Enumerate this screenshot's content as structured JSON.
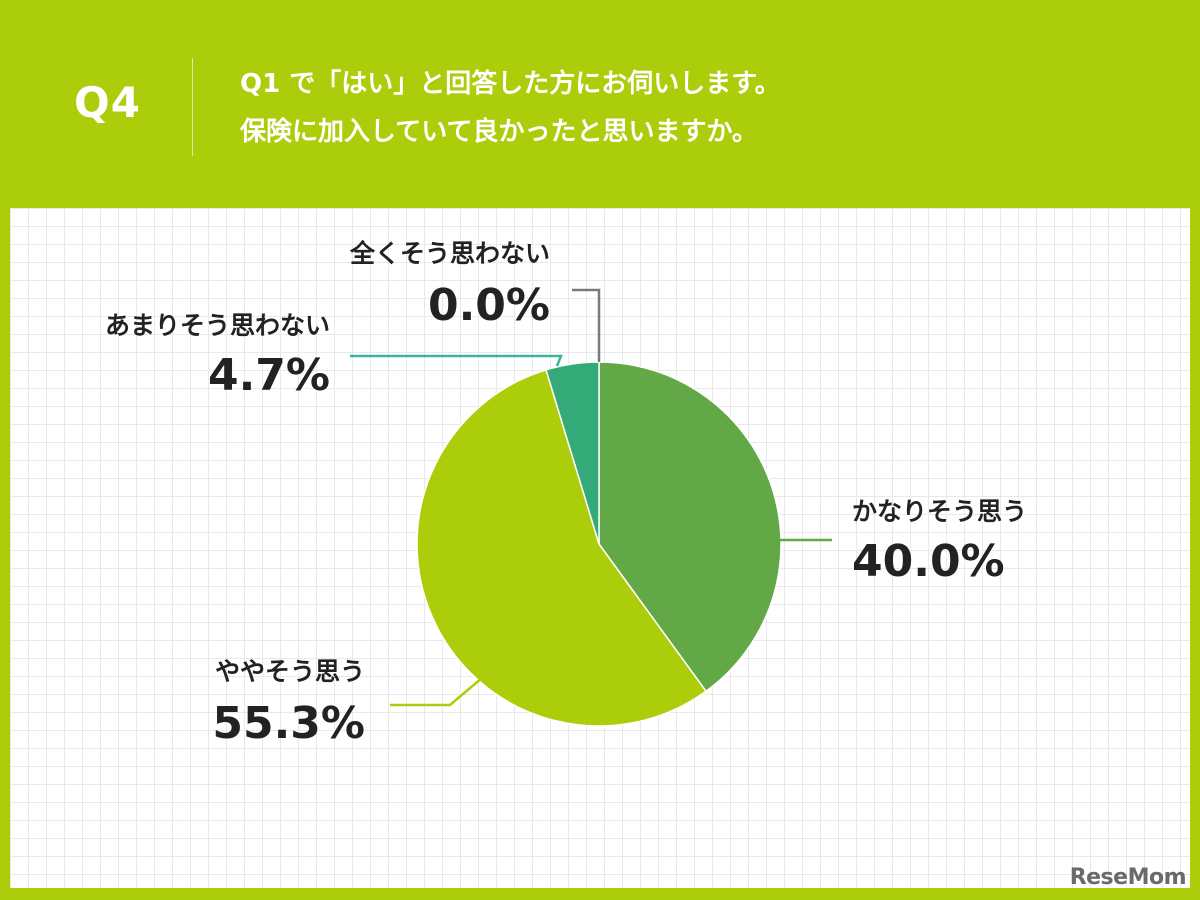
{
  "header": {
    "badge": "Q4",
    "question_line1": "Q1 で「はい」と回答した方にお伺いします。",
    "question_line2": "保険に加入していて良かったと思いますか。"
  },
  "watermark": "ReseMom",
  "colors": {
    "background": "#accd0a",
    "panel": "#ffffff",
    "grid": "#e9e9e9"
  },
  "chart_data": {
    "type": "pie",
    "title": "",
    "start": "top",
    "direction": "clockwise",
    "slices": [
      {
        "label": "かなりそう思う",
        "value": 40.0,
        "display": "40.0%",
        "color": "#63a846",
        "leader_color": "#63a846"
      },
      {
        "label": "ややそう思う",
        "value": 55.3,
        "display": "55.3%",
        "color": "#accd0a",
        "leader_color": "#accd0a"
      },
      {
        "label": "あまりそう思わない",
        "value": 4.7,
        "display": "4.7%",
        "color": "#33aa77",
        "leader_color": "#3ab79a"
      },
      {
        "label": "全くそう思わない",
        "value": 0.0,
        "display": "0.0%",
        "color": "#7a7a7a",
        "leader_color": "#7a7a7a"
      }
    ]
  }
}
